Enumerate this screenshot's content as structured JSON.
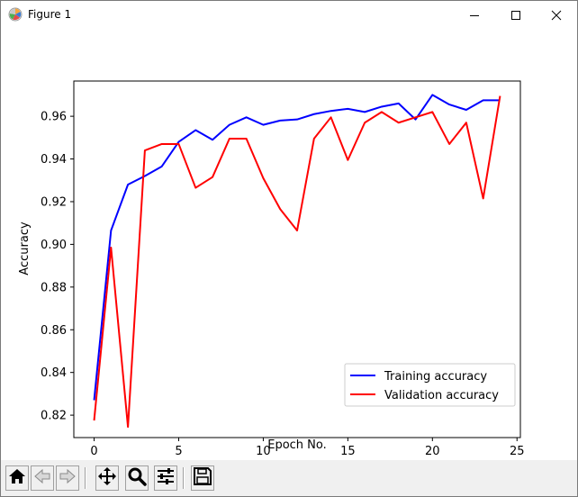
{
  "window": {
    "title": "Figure 1",
    "icons": {
      "app": "matplotlib-logo-icon",
      "minimize": "minimize-icon",
      "maximize": "maximize-icon",
      "close": "close-icon"
    }
  },
  "toolbar": {
    "buttons": [
      {
        "name": "home-button",
        "icon": "home-icon"
      },
      {
        "name": "back-button",
        "icon": "back-arrow-icon"
      },
      {
        "name": "forward-button",
        "icon": "forward-arrow-icon"
      },
      {
        "name": "pan-button",
        "icon": "move-icon"
      },
      {
        "name": "zoom-button",
        "icon": "magnifier-icon"
      },
      {
        "name": "configure-subplots-button",
        "icon": "sliders-icon"
      },
      {
        "name": "save-button",
        "icon": "floppy-disk-icon"
      }
    ]
  },
  "chart_data": {
    "type": "line",
    "title": "",
    "xlabel": "Epoch No.",
    "ylabel": "Accuracy",
    "xlim": [
      -1.2,
      25.2
    ],
    "ylim": [
      0.8095,
      0.9765
    ],
    "xticks": [
      0,
      5,
      10,
      15,
      20,
      25
    ],
    "xtick_labels": [
      "0",
      "5",
      "10",
      "15",
      "20",
      "25"
    ],
    "yticks": [
      0.82,
      0.84,
      0.86,
      0.88,
      0.9,
      0.92,
      0.94,
      0.96
    ],
    "ytick_labels": [
      "0.82",
      "0.84",
      "0.86",
      "0.88",
      "0.90",
      "0.92",
      "0.94",
      "0.96"
    ],
    "grid": false,
    "legend_position": "lower right",
    "x": [
      0,
      1,
      2,
      3,
      4,
      5,
      6,
      7,
      8,
      9,
      10,
      11,
      12,
      13,
      14,
      15,
      16,
      17,
      18,
      19,
      20,
      21,
      22,
      23,
      24
    ],
    "series": [
      {
        "name": "Training accuracy",
        "color": "#0000ff",
        "values": [
          0.827,
          0.9065,
          0.928,
          0.932,
          0.9365,
          0.948,
          0.9535,
          0.949,
          0.956,
          0.9595,
          0.956,
          0.958,
          0.9585,
          0.961,
          0.9625,
          0.9635,
          0.962,
          0.9645,
          0.966,
          0.9585,
          0.97,
          0.9655,
          0.963,
          0.9675,
          0.9675
        ]
      },
      {
        "name": "Validation accuracy",
        "color": "#ff0000",
        "values": [
          0.8175,
          0.8985,
          0.8145,
          0.944,
          0.947,
          0.947,
          0.9265,
          0.9315,
          0.9495,
          0.9495,
          0.931,
          0.9165,
          0.9065,
          0.9495,
          0.9595,
          0.9395,
          0.957,
          0.962,
          0.957,
          0.9595,
          0.962,
          0.947,
          0.957,
          0.9215,
          0.9695
        ]
      }
    ]
  }
}
